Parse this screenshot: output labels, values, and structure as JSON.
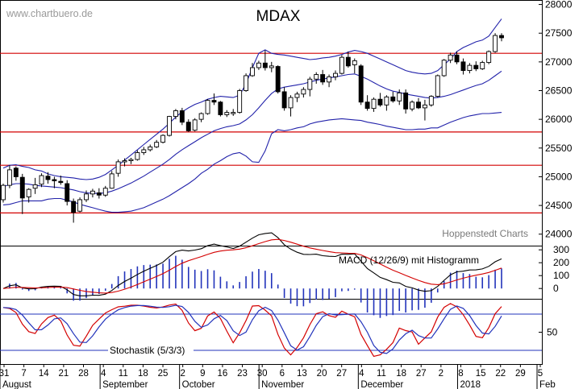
{
  "chart_data": [
    {
      "type": "candlestick",
      "title": "MDAX",
      "watermark": "www.chartbuero.de",
      "source_note": "Hoppenstedt Charts",
      "ylim": [
        23800,
        28050
      ],
      "ytick_labels": [
        "28000",
        "27500",
        "27000",
        "26500",
        "26000",
        "25500",
        "25000",
        "24500",
        "24000"
      ],
      "yticks": [
        28000,
        27500,
        27000,
        26500,
        26000,
        25500,
        25000,
        24500,
        24000
      ],
      "horizontal_lines": [
        27150,
        25780,
        25200,
        24370
      ],
      "ohlc": [
        [
          24600,
          24880,
          24550,
          24850
        ],
        [
          24850,
          25200,
          24800,
          25120
        ],
        [
          25150,
          25180,
          24930,
          25000
        ],
        [
          24990,
          25050,
          24350,
          24630
        ],
        [
          24650,
          24800,
          24550,
          24780
        ],
        [
          24800,
          24980,
          24700,
          24860
        ],
        [
          24870,
          25060,
          24820,
          25020
        ],
        [
          25010,
          25080,
          24880,
          24950
        ],
        [
          24950,
          25000,
          24800,
          24930
        ],
        [
          24920,
          25020,
          24860,
          24900
        ],
        [
          24880,
          24940,
          24500,
          24570
        ],
        [
          24570,
          24620,
          24200,
          24380
        ],
        [
          24400,
          24640,
          24380,
          24600
        ],
        [
          24600,
          24760,
          24560,
          24700
        ],
        [
          24700,
          24790,
          24640,
          24750
        ],
        [
          24720,
          24800,
          24620,
          24680
        ],
        [
          24680,
          24840,
          24650,
          24800
        ],
        [
          24800,
          25100,
          24790,
          25050
        ],
        [
          25060,
          25300,
          25000,
          25260
        ],
        [
          25260,
          25320,
          25180,
          25280
        ],
        [
          25280,
          25330,
          25220,
          25300
        ],
        [
          25300,
          25460,
          25280,
          25420
        ],
        [
          25420,
          25520,
          25380,
          25470
        ],
        [
          25470,
          25560,
          25440,
          25520
        ],
        [
          25520,
          25640,
          25500,
          25600
        ],
        [
          25600,
          25740,
          25580,
          25720
        ],
        [
          25720,
          26060,
          25700,
          26050
        ],
        [
          26050,
          26180,
          26000,
          26150
        ],
        [
          26150,
          26200,
          25900,
          25950
        ],
        [
          25950,
          26000,
          25780,
          25800
        ],
        [
          25810,
          26020,
          25790,
          25990
        ],
        [
          26000,
          26120,
          25950,
          26100
        ],
        [
          26100,
          26350,
          26080,
          26330
        ],
        [
          26330,
          26450,
          26250,
          26300
        ],
        [
          26300,
          26320,
          26050,
          26080
        ],
        [
          26080,
          26160,
          26040,
          26120
        ],
        [
          26110,
          26180,
          26060,
          26120
        ],
        [
          26120,
          26530,
          26100,
          26500
        ],
        [
          26500,
          26800,
          26480,
          26760
        ],
        [
          26760,
          26980,
          26740,
          26900
        ],
        [
          26900,
          27020,
          26860,
          26980
        ],
        [
          26980,
          27200,
          26850,
          26900
        ],
        [
          26900,
          27000,
          26820,
          26930
        ],
        [
          26920,
          26940,
          26450,
          26480
        ],
        [
          26480,
          26560,
          26150,
          26200
        ],
        [
          26200,
          26420,
          26050,
          26380
        ],
        [
          26380,
          26480,
          26300,
          26440
        ],
        [
          26440,
          26560,
          26380,
          26520
        ],
        [
          26520,
          26740,
          26400,
          26700
        ],
        [
          26700,
          26820,
          26620,
          26780
        ],
        [
          26780,
          26860,
          26600,
          26650
        ],
        [
          26650,
          26780,
          26560,
          26740
        ],
        [
          26740,
          26850,
          26680,
          26800
        ],
        [
          26800,
          27120,
          26780,
          27080
        ],
        [
          27080,
          27180,
          26900,
          26930
        ],
        [
          26950,
          27060,
          26800,
          27020
        ],
        [
          26930,
          26960,
          26250,
          26300
        ],
        [
          26300,
          26420,
          26150,
          26190
        ],
        [
          26190,
          26380,
          26130,
          26350
        ],
        [
          26350,
          26460,
          26220,
          26250
        ],
        [
          26250,
          26420,
          26150,
          26390
        ],
        [
          26390,
          26480,
          26290,
          26320
        ],
        [
          26320,
          26520,
          26250,
          26460
        ],
        [
          26460,
          26520,
          26100,
          26180
        ],
        [
          26180,
          26330,
          26140,
          26300
        ],
        [
          26300,
          26370,
          26180,
          26200
        ],
        [
          26200,
          26340,
          25980,
          26250
        ],
        [
          26250,
          26420,
          26220,
          26400
        ],
        [
          26400,
          26780,
          26380,
          26760
        ],
        [
          26760,
          27050,
          26740,
          27030
        ],
        [
          27030,
          27160,
          26980,
          27120
        ],
        [
          27120,
          27180,
          26960,
          27000
        ],
        [
          27000,
          27060,
          26780,
          26850
        ],
        [
          26850,
          26980,
          26800,
          26940
        ],
        [
          26940,
          27010,
          26840,
          26880
        ],
        [
          26880,
          27020,
          26860,
          26990
        ],
        [
          26990,
          27200,
          26960,
          27180
        ],
        [
          27180,
          27500,
          27160,
          27460
        ],
        [
          27460,
          27500,
          27360,
          27420
        ]
      ],
      "bollinger": {
        "upper": [
          25150,
          25200,
          25210,
          25180,
          25160,
          25120,
          25100,
          25050,
          25020,
          25000,
          24990,
          24980,
          24960,
          24950,
          24960,
          24990,
          25040,
          25120,
          25200,
          25290,
          25380,
          25470,
          25560,
          25650,
          25740,
          25830,
          25930,
          26040,
          26130,
          26200,
          26260,
          26300,
          26350,
          26380,
          26400,
          26390,
          26380,
          26420,
          26620,
          26900,
          27150,
          27210,
          27150,
          27130,
          27120,
          27100,
          27080,
          27060,
          27040,
          27050,
          27070,
          27080,
          27100,
          27130,
          27170,
          27200,
          27180,
          27150,
          27100,
          27050,
          27000,
          26950,
          26900,
          26850,
          26820,
          26800,
          26790,
          26800,
          26850,
          26950,
          27050,
          27180,
          27250,
          27300,
          27350,
          27380,
          27450,
          27600,
          27750
        ],
        "middle": [
          24830,
          24860,
          24880,
          24880,
          24870,
          24850,
          24840,
          24830,
          24820,
          24810,
          24790,
          24770,
          24740,
          24720,
          24710,
          24710,
          24720,
          24750,
          24790,
          24840,
          24890,
          24950,
          25010,
          25080,
          25150,
          25220,
          25300,
          25390,
          25470,
          25540,
          25610,
          25680,
          25740,
          25800,
          25840,
          25870,
          25890,
          25920,
          25990,
          26080,
          26200,
          26330,
          26450,
          26530,
          26560,
          26580,
          26600,
          26620,
          26650,
          26680,
          26700,
          26720,
          26740,
          26760,
          26780,
          26790,
          26750,
          26700,
          26640,
          26580,
          26530,
          26490,
          26470,
          26440,
          26420,
          26400,
          26380,
          26370,
          26380,
          26400,
          26430,
          26470,
          26510,
          26550,
          26590,
          26620,
          26680,
          26760,
          26840
        ],
        "lower": [
          24510,
          24520,
          24550,
          24580,
          24580,
          24580,
          24580,
          24610,
          24620,
          24620,
          24590,
          24560,
          24520,
          24490,
          24460,
          24430,
          24400,
          24380,
          24380,
          24390,
          24400,
          24430,
          24460,
          24510,
          24560,
          24610,
          24670,
          24740,
          24810,
          24880,
          24960,
          25060,
          25130,
          25220,
          25280,
          25350,
          25400,
          25420,
          25360,
          25260,
          25250,
          25450,
          25750,
          25820,
          25800,
          25820,
          25850,
          25870,
          25920,
          25950,
          25970,
          25990,
          26000,
          26010,
          26000,
          25990,
          25980,
          25950,
          25930,
          25910,
          25880,
          25860,
          25840,
          25820,
          25820,
          25830,
          25830,
          25850,
          25850,
          25900,
          25950,
          25990,
          26030,
          26060,
          26080,
          26100,
          26100,
          26110,
          26120
        ]
      },
      "x_day_labels": [
        "31",
        "7",
        "14",
        "21",
        "28",
        "4",
        "11",
        "18",
        "25",
        "2",
        "9",
        "16",
        "23",
        "30",
        "6",
        "13",
        "20",
        "27",
        "4",
        "11",
        "18",
        "27",
        "2",
        "8",
        "15",
        "22",
        "29",
        "5"
      ],
      "x_month_labels": [
        "August",
        "September",
        "October",
        "November",
        "December",
        "2018",
        "Feb"
      ]
    },
    {
      "type": "line",
      "label": "MACD (12/26/9) mit Histogramm",
      "ylim": [
        -80,
        320
      ],
      "ytick_labels": [
        "300",
        "200",
        "100",
        "0"
      ],
      "yticks": [
        300,
        200,
        100,
        0
      ]
    },
    {
      "type": "line",
      "label": "Stochastik (5/3/3)",
      "ylim": [
        0,
        100
      ],
      "ytick_labels": [
        "50"
      ],
      "yticks": [
        50
      ],
      "guide_lines": [
        80,
        20
      ]
    }
  ]
}
